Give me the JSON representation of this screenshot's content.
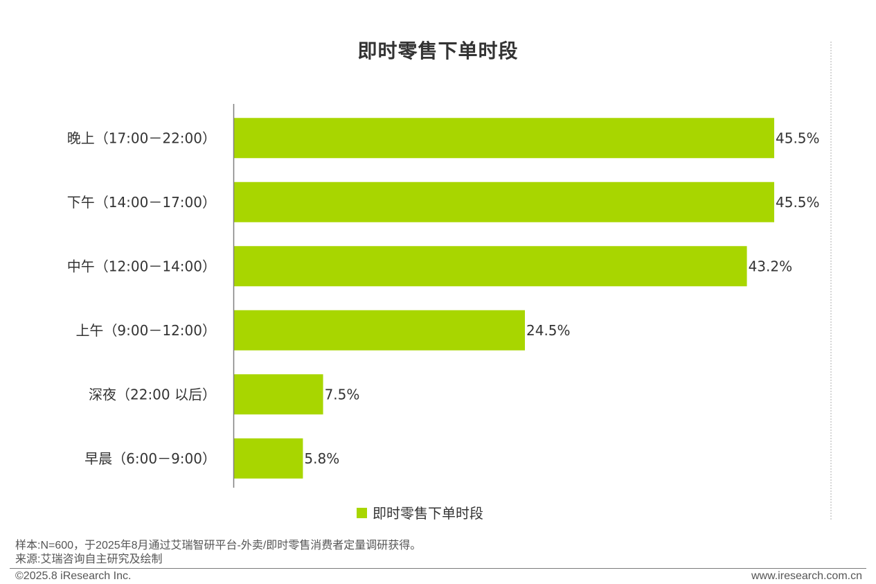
{
  "chart_data": {
    "type": "bar",
    "orientation": "horizontal",
    "title": "即时零售下单时段",
    "categories": [
      "晚上（17:00－22:00）",
      "下午（14:00－17:00）",
      "中午（12:00－14:00）",
      "上午（9:00－12:00）",
      "深夜（22:00 以后）",
      "早晨（6:00－9:00）"
    ],
    "series": [
      {
        "name": "即时零售下单时段",
        "values": [
          45.5,
          45.5,
          43.2,
          24.5,
          7.5,
          5.8
        ],
        "labels": [
          "45.5%",
          "45.5%",
          "43.2%",
          "24.5%",
          "7.5%",
          "5.8%"
        ]
      }
    ],
    "xlim": [
      0,
      50
    ],
    "value_unit": "%",
    "grid": false,
    "legend_position": "bottom",
    "colors": {
      "bar": "#a8d600",
      "axis": "#7f7f7f",
      "text": "#333333"
    }
  },
  "notes": {
    "sample": "样本:N=600，于2025年8月通过艾瑞智研平台-外卖/即时零售消费者定量调研获得。",
    "source": "来源:艾瑞咨询自主研究及绘制"
  },
  "footer": {
    "copyright": "©2025.8 iResearch Inc.",
    "website": "www.iresearch.com.cn"
  }
}
